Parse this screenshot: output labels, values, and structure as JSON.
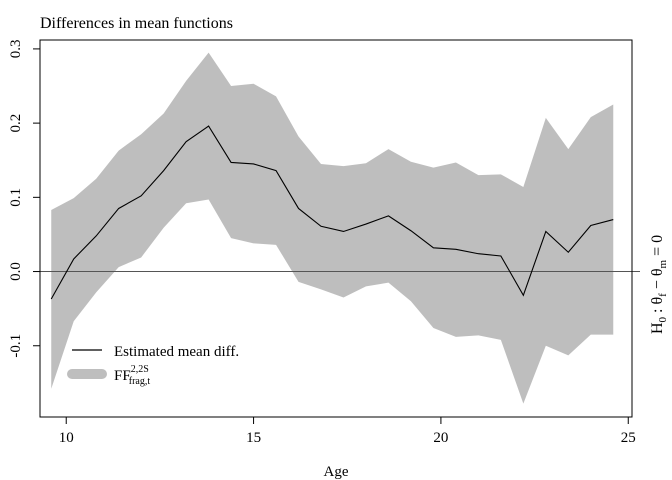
{
  "chart_data": {
    "type": "line",
    "title": "Differences in mean functions",
    "xlabel": "Age",
    "ylabel": "",
    "xlim": [
      9.3,
      25.1
    ],
    "ylim": [
      -0.196,
      0.312
    ],
    "xticks": [
      10,
      15,
      20,
      25
    ],
    "yticks": [
      -0.1,
      0.0,
      0.1,
      0.2,
      0.3
    ],
    "xtick_labels": [
      "10",
      "15",
      "20",
      "25"
    ],
    "ytick_labels": [
      "-0.1",
      "0.0",
      "0.1",
      "0.2",
      "0.3"
    ],
    "reference_line": 0.0,
    "grid": false,
    "legend_position": "bottom-left",
    "right_label": {
      "h": "H",
      "h_sub": "0",
      "colon": " : ",
      "theta1": "θ",
      "theta1_sub": "f",
      "minus": " − ",
      "theta2": "θ",
      "theta2_sub": "m",
      "equals": " = 0"
    },
    "series": [
      {
        "name": "Estimated mean diff.",
        "kind": "line",
        "color": "#000000",
        "x": [
          9.6,
          10.2,
          10.8,
          11.4,
          12.0,
          12.6,
          13.2,
          13.8,
          14.4,
          15.0,
          15.6,
          16.2,
          16.8,
          17.4,
          18.0,
          18.6,
          19.2,
          19.8,
          20.4,
          21.0,
          21.6,
          22.2,
          22.8,
          23.4,
          24.0,
          24.6
        ],
        "values": [
          -0.037,
          0.017,
          0.048,
          0.085,
          0.102,
          0.136,
          0.175,
          0.196,
          0.147,
          0.145,
          0.136,
          0.085,
          0.061,
          0.054,
          0.064,
          0.075,
          0.055,
          0.032,
          0.03,
          0.024,
          0.021,
          -0.032,
          0.054,
          0.026,
          0.062,
          0.07
        ]
      },
      {
        "name": "FF",
        "name_sup": "2,2S",
        "name_sub": "frag,t",
        "kind": "band",
        "color": "#bebebe",
        "x": [
          9.6,
          10.2,
          10.8,
          11.4,
          12.0,
          12.6,
          13.2,
          13.8,
          14.4,
          15.0,
          15.6,
          16.2,
          16.8,
          17.4,
          18.0,
          18.6,
          19.2,
          19.8,
          20.4,
          21.0,
          21.6,
          22.2,
          22.8,
          23.4,
          24.0,
          24.6
        ],
        "upper": [
          0.083,
          0.099,
          0.125,
          0.163,
          0.185,
          0.213,
          0.257,
          0.295,
          0.25,
          0.253,
          0.236,
          0.182,
          0.145,
          0.142,
          0.146,
          0.165,
          0.148,
          0.14,
          0.147,
          0.13,
          0.131,
          0.114,
          0.207,
          0.165,
          0.208,
          0.225
        ],
        "lower": [
          -0.158,
          -0.067,
          -0.028,
          0.006,
          0.019,
          0.059,
          0.092,
          0.097,
          0.045,
          0.038,
          0.036,
          -0.014,
          -0.024,
          -0.035,
          -0.02,
          -0.015,
          -0.04,
          -0.076,
          -0.088,
          -0.086,
          -0.092,
          -0.178,
          -0.1,
          -0.113,
          -0.085,
          -0.085
        ]
      }
    ]
  }
}
